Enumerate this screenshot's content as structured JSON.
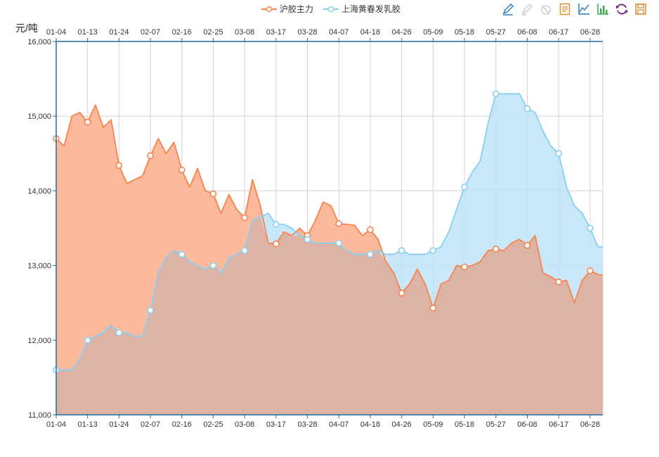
{
  "legend": {
    "series_a": "沪胶主力",
    "series_b": "上海黄春发乳胶"
  },
  "toolbox": [
    "mark-icon",
    "mark-undo-icon",
    "mark-clear-icon",
    "data-view-icon",
    "line-chart-icon",
    "bar-chart-icon",
    "restore-icon",
    "save-image-icon"
  ],
  "colors": {
    "series_a": "#f7834d",
    "series_a_fill": "#fdb99c",
    "series_b": "#87cff2",
    "series_b_fill": "#bee4f9",
    "overlap_fill": "#ddb3a5",
    "axis": "#1f6ea1",
    "grid": "#d4d4d4"
  },
  "chart_data": {
    "type": "area",
    "ylabel": "元/吨",
    "ylim": [
      11000,
      16000
    ],
    "yticks": [
      "11,000",
      "12,000",
      "13,000",
      "14,000",
      "15,000",
      "16,000"
    ],
    "x_tick_labels": [
      "01-04",
      "01-13",
      "01-24",
      "02-07",
      "02-16",
      "02-25",
      "03-08",
      "03-17",
      "03-28",
      "04-07",
      "04-18",
      "04-26",
      "05-09",
      "05-18",
      "05-27",
      "06-08",
      "06-17",
      "06-28"
    ],
    "series": [
      {
        "name": "沪胶主力",
        "x": [
          0,
          0.25,
          0.5,
          0.75,
          1,
          1.25,
          1.5,
          1.75,
          2,
          2.25,
          2.5,
          2.75,
          3,
          3.25,
          3.5,
          3.75,
          4,
          4.25,
          4.5,
          4.75,
          5,
          5.25,
          5.5,
          5.75,
          6,
          6.25,
          6.5,
          6.75,
          7,
          7.25,
          7.5,
          7.75,
          8,
          8.25,
          8.5,
          8.75,
          9,
          9.25,
          9.5,
          9.75,
          10,
          10.25,
          10.5,
          10.75,
          11,
          11.25,
          11.5,
          11.75,
          12,
          12.25,
          12.5,
          12.75,
          13,
          13.25,
          13.5,
          13.75,
          14,
          14.25,
          14.5,
          14.75,
          15,
          15.25,
          15.5,
          15.75,
          16,
          16.25,
          16.5,
          16.75,
          17,
          17.25,
          17.4
        ],
        "y": [
          14700,
          14600,
          15000,
          15050,
          14920,
          15150,
          14850,
          14950,
          14340,
          14100,
          14150,
          14200,
          14470,
          14700,
          14500,
          14650,
          14280,
          14050,
          14300,
          14000,
          13960,
          13700,
          13950,
          13750,
          13640,
          14150,
          13800,
          13300,
          13290,
          13450,
          13400,
          13500,
          13400,
          13600,
          13850,
          13800,
          13560,
          13550,
          13540,
          13400,
          13480,
          13350,
          13050,
          12900,
          12630,
          12750,
          12950,
          12750,
          12430,
          12750,
          12800,
          13000,
          12980,
          13000,
          13050,
          13200,
          13220,
          13200,
          13300,
          13350,
          13270,
          13400,
          12900,
          12850,
          12780,
          12800,
          12500,
          12800,
          12930,
          12880,
          12870
        ]
      },
      {
        "name": "上海黄春发乳胶",
        "x": [
          0,
          0.25,
          0.5,
          0.75,
          1,
          1.25,
          1.5,
          1.75,
          2,
          2.25,
          2.5,
          2.75,
          3,
          3.25,
          3.5,
          3.75,
          4,
          4.25,
          4.5,
          4.75,
          5,
          5.25,
          5.5,
          5.75,
          6,
          6.25,
          6.5,
          6.75,
          7,
          7.25,
          7.5,
          7.75,
          8,
          8.25,
          8.5,
          8.75,
          9,
          9.25,
          9.5,
          9.75,
          10,
          10.25,
          10.5,
          10.75,
          11,
          11.25,
          11.5,
          11.75,
          12,
          12.25,
          12.5,
          12.75,
          13,
          13.25,
          13.5,
          13.75,
          14,
          14.25,
          14.5,
          14.75,
          15,
          15.25,
          15.5,
          15.75,
          16,
          16.25,
          16.5,
          16.75,
          17,
          17.25,
          17.4
        ],
        "y": [
          11600,
          11600,
          11600,
          11750,
          12000,
          12050,
          12100,
          12200,
          12100,
          12100,
          12050,
          12050,
          12400,
          12900,
          13100,
          13200,
          13150,
          13050,
          13000,
          12950,
          13000,
          12900,
          13100,
          13150,
          13200,
          13600,
          13650,
          13700,
          13550,
          13550,
          13500,
          13400,
          13350,
          13300,
          13300,
          13300,
          13300,
          13200,
          13150,
          13150,
          13150,
          13200,
          13150,
          13150,
          13200,
          13150,
          13150,
          13150,
          13200,
          13250,
          13450,
          13750,
          14050,
          14250,
          14400,
          14900,
          15300,
          15300,
          15300,
          15300,
          15100,
          15050,
          14800,
          14600,
          14500,
          14050,
          13800,
          13700,
          13500,
          13250,
          13250
        ]
      }
    ]
  }
}
